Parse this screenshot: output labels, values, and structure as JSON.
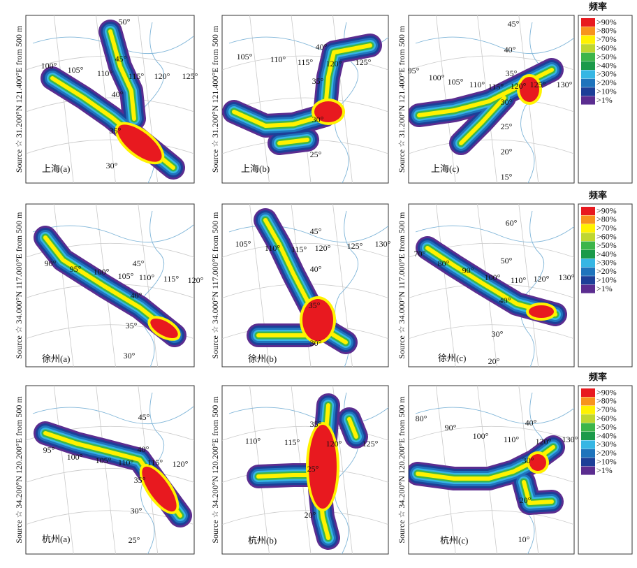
{
  "rows": [
    {
      "source_label": "Source ☆ 31.200°N 121.400°E from 500 m",
      "legend": {
        "title": "频率",
        "entries": [
          {
            "label": ">90%",
            "color": "#e8191f"
          },
          {
            "label": ">80%",
            "color": "#f7941d"
          },
          {
            "label": ">70%",
            "color": "#fff200"
          },
          {
            "label": ">60%",
            "color": "#bfd730"
          },
          {
            "label": ">50%",
            "color": "#3cb54a"
          },
          {
            "label": ">40%",
            "color": "#1b9a4a"
          },
          {
            "label": ">30%",
            "color": "#36b6e4"
          },
          {
            "label": ">20%",
            "color": "#1f74bc"
          },
          {
            "label": ">10%",
            "color": "#1d3f98"
          },
          {
            "label": ">1%",
            "color": "#5b2d90"
          }
        ]
      },
      "panels": [
        {
          "label": "上海(a)",
          "degrees": [
            "50°",
            "45°",
            "100°",
            "105°",
            "110°",
            "115°",
            "120°",
            "125°",
            "40°",
            "35°",
            "30°"
          ]
        },
        {
          "label": "上海(b)",
          "degrees": [
            "40°",
            "105°",
            "110°",
            "115°",
            "120°",
            "125°",
            "35°",
            "30°",
            "25°"
          ]
        },
        {
          "label": "上海(c)",
          "degrees": [
            "45°",
            "40°",
            "95°",
            "100°",
            "105°",
            "110°",
            "115°",
            "120°",
            "125°",
            "130°",
            "35°",
            "30°",
            "25°",
            "20°",
            "15°"
          ]
        }
      ]
    },
    {
      "source_label": "Source ☆ 34.000°N 117.000°E from 500 m",
      "legend": {
        "title": "频率",
        "entries": [
          {
            "label": ">90%",
            "color": "#e8191f"
          },
          {
            "label": ">80%",
            "color": "#f7941d"
          },
          {
            "label": ">70%",
            "color": "#fff200"
          },
          {
            "label": ">60%",
            "color": "#bfd730"
          },
          {
            "label": ">50%",
            "color": "#3cb54a"
          },
          {
            "label": ">40%",
            "color": "#1b9a4a"
          },
          {
            "label": ">30%",
            "color": "#36b6e4"
          },
          {
            "label": ">20%",
            "color": "#1f74bc"
          },
          {
            "label": ">10%",
            "color": "#1d3f98"
          },
          {
            "label": ">1%",
            "color": "#5b2d90"
          }
        ]
      },
      "panels": [
        {
          "label": "徐州(a)",
          "degrees": [
            "45°",
            "90°",
            "95°",
            "100°",
            "105°",
            "110°",
            "115°",
            "120°",
            "40°",
            "35°",
            "30°"
          ]
        },
        {
          "label": "徐州(b)",
          "degrees": [
            "105°",
            "110°",
            "115°",
            "120°",
            "125°",
            "130°",
            "45°",
            "40°",
            "35°",
            "30°"
          ]
        },
        {
          "label": "徐州(c)",
          "degrees": [
            "60°",
            "70°",
            "80°",
            "90°",
            "50°",
            "100°",
            "110°",
            "120°",
            "130°",
            "40°",
            "30°",
            "20°"
          ]
        }
      ]
    },
    {
      "source_label": "Source ☆ 34.200°N 120.200°E from 500 m",
      "legend": {
        "title": "频率",
        "entries": [
          {
            "label": ">90%",
            "color": "#e8191f"
          },
          {
            "label": ">80%",
            "color": "#f7941d"
          },
          {
            "label": ">70%",
            "color": "#fff200"
          },
          {
            "label": ">60%",
            "color": "#bfd730"
          },
          {
            "label": ">50%",
            "color": "#3cb54a"
          },
          {
            "label": ">40%",
            "color": "#1b9a4a"
          },
          {
            "label": ">30%",
            "color": "#36b6e4"
          },
          {
            "label": ">20%",
            "color": "#1f74bc"
          },
          {
            "label": ">10%",
            "color": "#1d3f98"
          },
          {
            "label": ">1%",
            "color": "#5b2d90"
          }
        ]
      },
      "panels": [
        {
          "label": "杭州(a)",
          "degrees": [
            "45°",
            "40°",
            "95°",
            "100°",
            "105°",
            "110°",
            "115°",
            "120°",
            "35°",
            "30°",
            "25°"
          ]
        },
        {
          "label": "杭州(b)",
          "degrees": [
            "35°",
            "110°",
            "115°",
            "120°",
            "125°",
            "25°",
            "20°"
          ]
        },
        {
          "label": "杭州(c)",
          "degrees": [
            "80°",
            "90°",
            "100°",
            "110°",
            "40°",
            "120°",
            "130°",
            "30°",
            "20°",
            "10°"
          ]
        }
      ]
    }
  ]
}
